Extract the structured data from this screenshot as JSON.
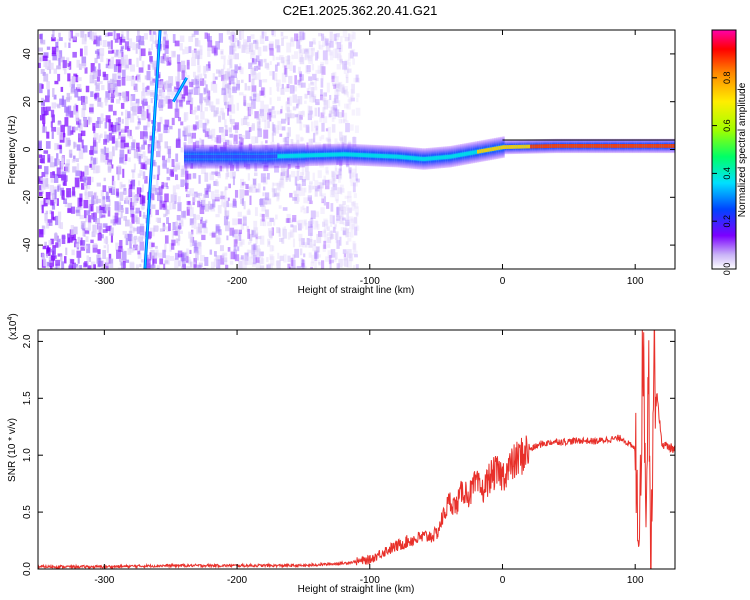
{
  "figure": {
    "title": "C2E1.2025.362.20.41.G21"
  },
  "chart_data": [
    {
      "type": "heatmap",
      "xlabel": "Height of straight line (km)",
      "ylabel": "Frequency (Hz)",
      "xlim": [
        -350,
        130
      ],
      "ylim": [
        -50,
        50
      ],
      "x_ticks": [
        -300,
        -200,
        -100,
        0,
        100
      ],
      "y_ticks": [
        -40,
        -20,
        0,
        20,
        40
      ],
      "colorbar": {
        "label": "Normalized spectral amplitude",
        "range": [
          0,
          1
        ],
        "ticks": [
          "0.0",
          "0.2",
          "0.4",
          "0.6",
          "0.8"
        ],
        "colormap": [
          "#ffffff",
          "#c9b3f7",
          "#7b00ff",
          "#0044ff",
          "#00e0ff",
          "#00ff66",
          "#a0ff00",
          "#ffee00",
          "#ff8800",
          "#ff0000",
          "#ff00aa"
        ]
      },
      "features": {
        "noise_region_x": [
          -350,
          -110
        ],
        "signal_band_center_hz": [
          [
            -240,
            -3
          ],
          [
            -180,
            -3
          ],
          [
            -120,
            -2
          ],
          [
            -80,
            -3
          ],
          [
            -60,
            -4
          ],
          [
            -40,
            -3
          ],
          [
            -20,
            -1
          ],
          [
            0,
            1
          ],
          [
            40,
            1.5
          ],
          [
            100,
            1.5
          ],
          [
            130,
            1.5
          ]
        ],
        "diagonal_streaks": [
          {
            "x": [
              -270,
              -258
            ],
            "y": [
              -55,
              50
            ]
          },
          {
            "x": [
              -248,
              -238
            ],
            "y": [
              20,
              30
            ]
          }
        ]
      }
    },
    {
      "type": "line",
      "xlabel": "Height of straight line (km)",
      "ylabel": "SNR (10 * v/v)",
      "y_multiplier_label": "(x10",
      "y_multiplier_exp": "4",
      "xlim": [
        -350,
        130
      ],
      "ylim": [
        0,
        2.1
      ],
      "x_ticks": [
        -300,
        -200,
        -100,
        0,
        100
      ],
      "y_ticks": [
        "0.0",
        "0.5",
        "1.0",
        "1.5",
        "2.0"
      ],
      "series": [
        {
          "color": "#e8302a",
          "x": [
            -350,
            -300,
            -250,
            -200,
            -150,
            -120,
            -100,
            -90,
            -80,
            -70,
            -60,
            -50,
            -45,
            -40,
            -35,
            -30,
            -25,
            -20,
            -15,
            -10,
            -5,
            0,
            10,
            20,
            30,
            40,
            50,
            60,
            70,
            80,
            90,
            95,
            100,
            103,
            106,
            108,
            110,
            112,
            114,
            120,
            130
          ],
          "y": [
            0.02,
            0.02,
            0.03,
            0.03,
            0.03,
            0.05,
            0.08,
            0.15,
            0.2,
            0.25,
            0.28,
            0.3,
            0.45,
            0.6,
            0.55,
            0.7,
            0.65,
            0.75,
            0.68,
            0.8,
            0.85,
            0.82,
            0.95,
            1.05,
            1.1,
            1.12,
            1.12,
            1.13,
            1.12,
            1.14,
            1.15,
            1.1,
            1.05,
            0.4,
            2.0,
            0.6,
            1.9,
            0.05,
            1.85,
            1.1,
            1.05
          ]
        }
      ]
    }
  ]
}
